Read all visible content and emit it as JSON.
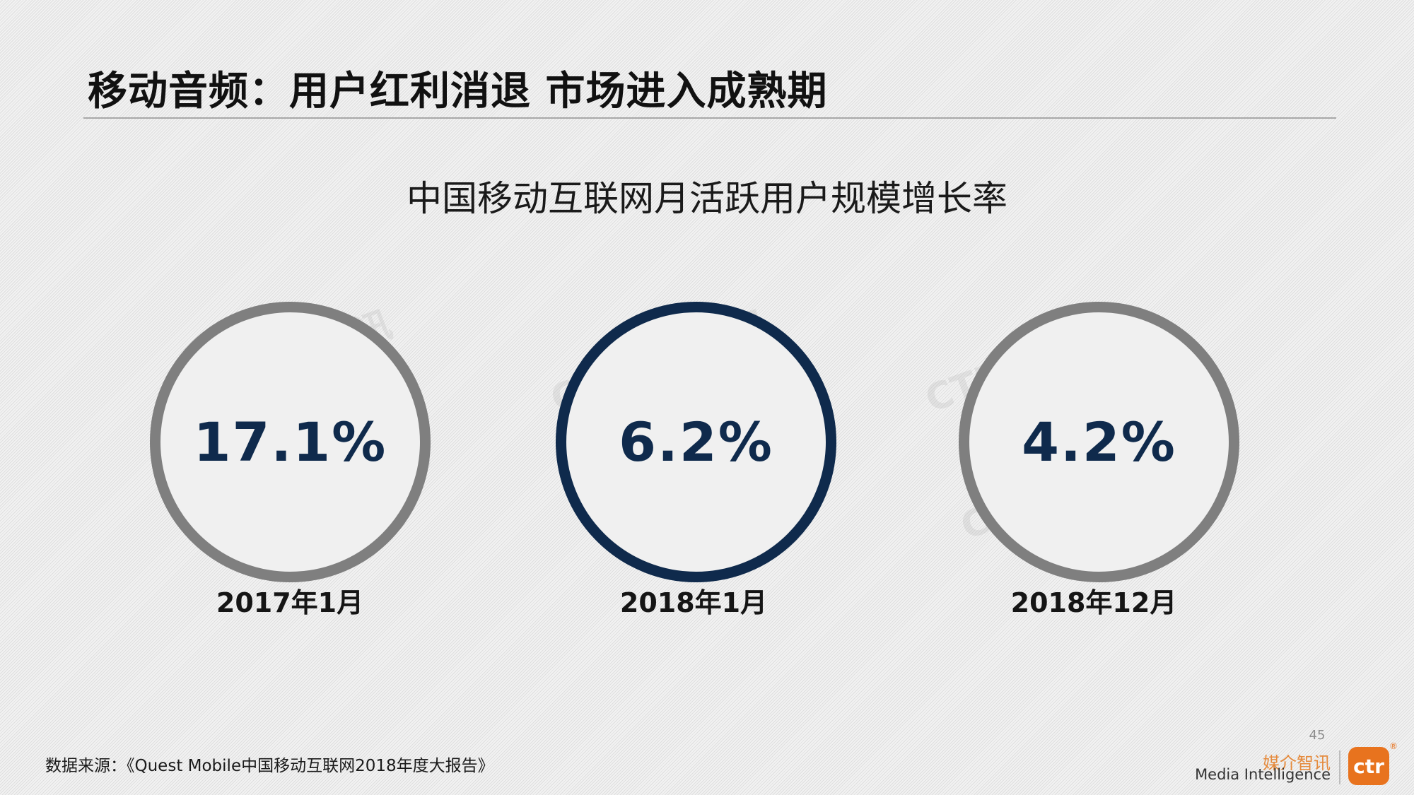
{
  "slide": {
    "title": "移动音频：用户红利消退 市场进入成熟期"
  },
  "chart": {
    "title": "中国移动互联网月活跃用户规模增长率",
    "items": [
      {
        "value": "17.1%",
        "label": "2017年1月",
        "highlight": false
      },
      {
        "value": "6.2%",
        "label": "2018年1月",
        "highlight": true
      },
      {
        "value": "4.2%",
        "label": "2018年12月",
        "highlight": false
      }
    ]
  },
  "watermark": {
    "text": "CTR媒介智讯"
  },
  "footer": {
    "source": "数据来源：《Quest Mobile中国移动互联网2018年度大报告》",
    "page_number": "45",
    "brand_cn": "媒介智讯",
    "brand_en": "Media Intelligence",
    "logo_text": "ctr",
    "logo_mark": "®"
  },
  "colors": {
    "highlight_ring": "#0f2a4c",
    "default_ring": "#7f7f7f",
    "value_text": "#0f2a4c",
    "brand_orange": "#e8731e"
  }
}
